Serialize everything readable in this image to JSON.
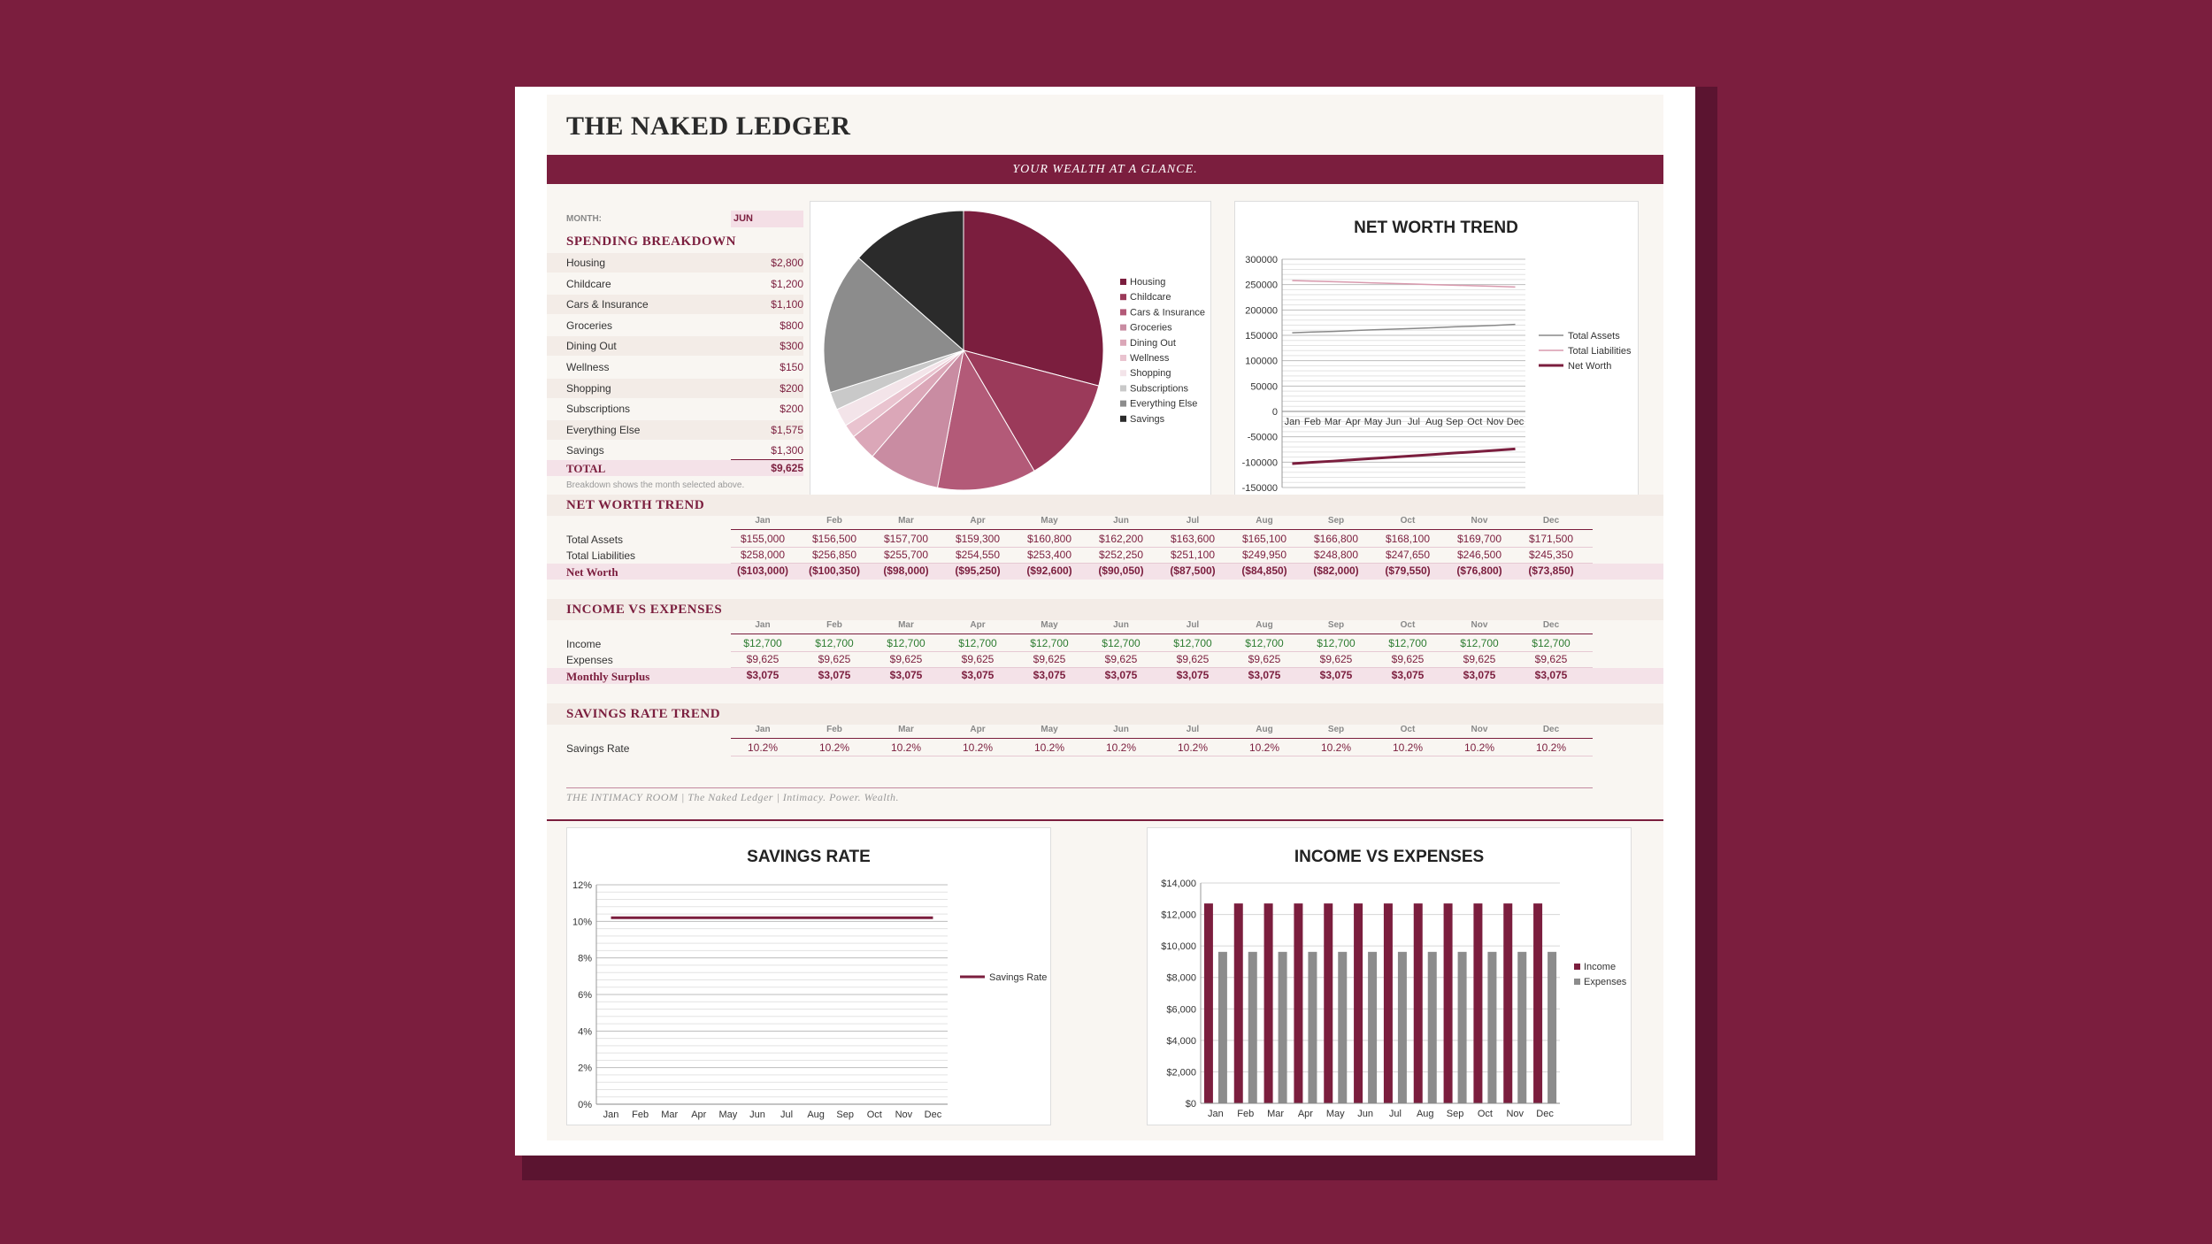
{
  "header": {
    "title": "THE NAKED LEDGER",
    "tagline": "YOUR WEALTH AT A GLANCE."
  },
  "month": {
    "label": "MONTH:",
    "value": "JUN"
  },
  "spending": {
    "title": "SPENDING BREAKDOWN",
    "items": [
      {
        "label": "Housing",
        "value": "$2,800"
      },
      {
        "label": "Childcare",
        "value": "$1,200"
      },
      {
        "label": "Cars & Insurance",
        "value": "$1,100"
      },
      {
        "label": "Groceries",
        "value": "$800"
      },
      {
        "label": "Dining Out",
        "value": "$300"
      },
      {
        "label": "Wellness",
        "value": "$150"
      },
      {
        "label": "Shopping",
        "value": "$200"
      },
      {
        "label": "Subscriptions",
        "value": "$200"
      },
      {
        "label": "Everything Else",
        "value": "$1,575"
      },
      {
        "label": "Savings",
        "value": "$1,300"
      }
    ],
    "total_label": "TOTAL",
    "total_value": "$9,625",
    "note": "Breakdown shows the month selected above."
  },
  "months": [
    "Jan",
    "Feb",
    "Mar",
    "Apr",
    "May",
    "Jun",
    "Jul",
    "Aug",
    "Sep",
    "Oct",
    "Nov",
    "Dec"
  ],
  "networth_table": {
    "title": "NET WORTH TREND",
    "rows": [
      {
        "label": "Total Assets",
        "values": [
          "$155,000",
          "$156,500",
          "$157,700",
          "$159,300",
          "$160,800",
          "$162,200",
          "$163,600",
          "$165,100",
          "$166,800",
          "$168,100",
          "$169,700",
          "$171,500"
        ]
      },
      {
        "label": "Total Liabilities",
        "values": [
          "$258,000",
          "$256,850",
          "$255,700",
          "$254,550",
          "$253,400",
          "$252,250",
          "$251,100",
          "$249,950",
          "$248,800",
          "$247,650",
          "$246,500",
          "$245,350"
        ]
      },
      {
        "label": "Net Worth",
        "values": [
          "($103,000)",
          "($100,350)",
          "($98,000)",
          "($95,250)",
          "($92,600)",
          "($90,050)",
          "($87,500)",
          "($84,850)",
          "($82,000)",
          "($79,550)",
          "($76,800)",
          "($73,850)"
        ]
      }
    ]
  },
  "income_table": {
    "title": "INCOME VS EXPENSES",
    "rows": [
      {
        "label": "Income",
        "values": [
          "$12,700",
          "$12,700",
          "$12,700",
          "$12,700",
          "$12,700",
          "$12,700",
          "$12,700",
          "$12,700",
          "$12,700",
          "$12,700",
          "$12,700",
          "$12,700"
        ]
      },
      {
        "label": "Expenses",
        "values": [
          "$9,625",
          "$9,625",
          "$9,625",
          "$9,625",
          "$9,625",
          "$9,625",
          "$9,625",
          "$9,625",
          "$9,625",
          "$9,625",
          "$9,625",
          "$9,625"
        ]
      },
      {
        "label": "Monthly Surplus",
        "values": [
          "$3,075",
          "$3,075",
          "$3,075",
          "$3,075",
          "$3,075",
          "$3,075",
          "$3,075",
          "$3,075",
          "$3,075",
          "$3,075",
          "$3,075",
          "$3,075"
        ]
      }
    ]
  },
  "savings_table": {
    "title": "SAVINGS RATE TREND",
    "rows": [
      {
        "label": "Savings Rate",
        "values": [
          "10.2%",
          "10.2%",
          "10.2%",
          "10.2%",
          "10.2%",
          "10.2%",
          "10.2%",
          "10.2%",
          "10.2%",
          "10.2%",
          "10.2%",
          "10.2%"
        ]
      }
    ]
  },
  "footer": "THE INTIMACY ROOM  |  The Naked Ledger  |  Intimacy. Power. Wealth.",
  "colors": {
    "accent": "#7b1e3e",
    "income_green": "#2e7d32",
    "expense_gray": "#8c8c8c"
  },
  "chart_data": [
    {
      "type": "pie",
      "labels": [
        "Housing",
        "Childcare",
        "Cars & Insurance",
        "Groceries",
        "Dining Out",
        "Wellness",
        "Shopping",
        "Subscriptions",
        "Everything Else",
        "Savings"
      ],
      "values": [
        2800,
        1200,
        1100,
        800,
        300,
        150,
        200,
        200,
        1575,
        1300
      ],
      "colors": [
        "#7b1e3e",
        "#9b3a5a",
        "#b35a78",
        "#c98ca2",
        "#dba7b8",
        "#e9c3cf",
        "#f3e4e9",
        "#c9c9c9",
        "#8c8c8c",
        "#2b2b2b"
      ],
      "legend": "right"
    },
    {
      "type": "line",
      "title": "NET WORTH TREND",
      "x": [
        "Jan",
        "Feb",
        "Mar",
        "Apr",
        "May",
        "Jun",
        "Jul",
        "Aug",
        "Sep",
        "Oct",
        "Nov",
        "Dec"
      ],
      "ylim": [
        -150000,
        300000
      ],
      "yticks": [
        "300000",
        "250000",
        "200000",
        "150000",
        "100000",
        "50000",
        "0",
        "-50000",
        "-100000",
        "-150000"
      ],
      "series": [
        {
          "name": "Total Assets",
          "values": [
            155000,
            156500,
            157700,
            159300,
            160800,
            162200,
            163600,
            165100,
            166800,
            168100,
            169700,
            171500
          ],
          "color": "#888888"
        },
        {
          "name": "Total Liabilities",
          "values": [
            258000,
            256850,
            255700,
            254550,
            253400,
            252250,
            251100,
            249950,
            248800,
            247650,
            246500,
            245350
          ],
          "color": "#d99aae"
        },
        {
          "name": "Net Worth",
          "values": [
            -103000,
            -100350,
            -98000,
            -95250,
            -92600,
            -90050,
            -87500,
            -84850,
            -82000,
            -79550,
            -76800,
            -73850
          ],
          "color": "#7b1e3e"
        }
      ],
      "grid": true,
      "legend": "right"
    },
    {
      "type": "line",
      "title": "SAVINGS RATE",
      "x": [
        "Jan",
        "Feb",
        "Mar",
        "Apr",
        "May",
        "Jun",
        "Jul",
        "Aug",
        "Sep",
        "Oct",
        "Nov",
        "Dec"
      ],
      "ylim": [
        0,
        12
      ],
      "yticks": [
        "12%",
        "10%",
        "8%",
        "6%",
        "4%",
        "2%",
        "0%"
      ],
      "series": [
        {
          "name": "Savings Rate",
          "values": [
            10.2,
            10.2,
            10.2,
            10.2,
            10.2,
            10.2,
            10.2,
            10.2,
            10.2,
            10.2,
            10.2,
            10.2
          ],
          "color": "#7b1e3e"
        }
      ],
      "grid": true,
      "legend": "right"
    },
    {
      "type": "bar",
      "title": "INCOME VS EXPENSES",
      "categories": [
        "Jan",
        "Feb",
        "Mar",
        "Apr",
        "May",
        "Jun",
        "Jul",
        "Aug",
        "Sep",
        "Oct",
        "Nov",
        "Dec"
      ],
      "ylim": [
        0,
        14000
      ],
      "yticks": [
        "$14,000",
        "$12,000",
        "$10,000",
        "$8,000",
        "$6,000",
        "$4,000",
        "$2,000",
        "$0"
      ],
      "series": [
        {
          "name": "Income",
          "values": [
            12700,
            12700,
            12700,
            12700,
            12700,
            12700,
            12700,
            12700,
            12700,
            12700,
            12700,
            12700
          ],
          "color": "#7b1e3e"
        },
        {
          "name": "Expenses",
          "values": [
            9625,
            9625,
            9625,
            9625,
            9625,
            9625,
            9625,
            9625,
            9625,
            9625,
            9625,
            9625
          ],
          "color": "#8c8c8c"
        }
      ],
      "grid": true,
      "legend": "right"
    }
  ]
}
